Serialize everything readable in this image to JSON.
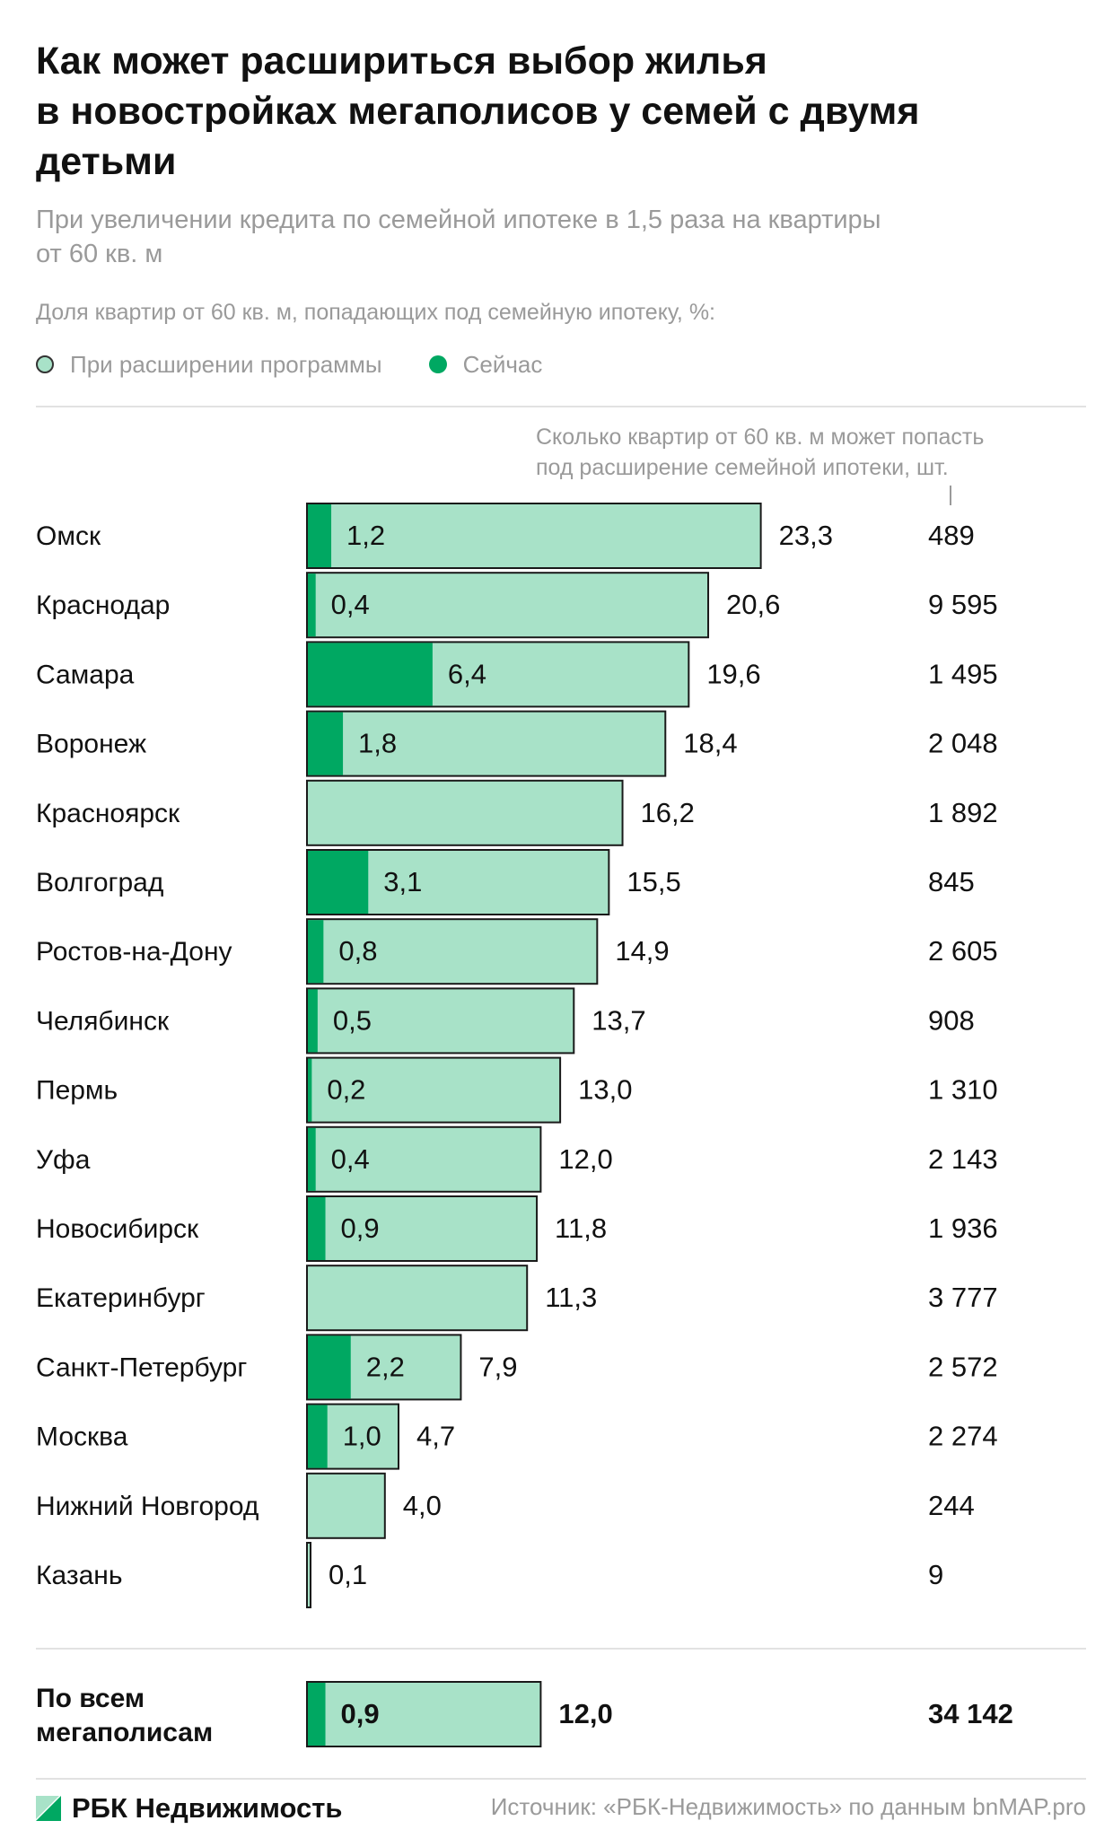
{
  "header": {
    "title_lines": [
      "Как может расшириться выбор жилья",
      "в новостройках  мегаполисов у семей с двумя",
      "детьми"
    ],
    "subtitle_lines": [
      "При увеличении кредита по семейной ипотеке в 1,5 раза на квартиры",
      "от 60 кв. м"
    ],
    "note": "Доля квартир от 60 кв. м, попадающих под семейную ипотеку, %:"
  },
  "legend": {
    "expanded_label": "При расширении программы",
    "current_label": "Сейчас"
  },
  "colors": {
    "expanded": "#a8e2c8",
    "current": "#00a862",
    "bar_outline": "#1a1a1a",
    "muted_text": "#9a9a9a"
  },
  "count_header_lines": [
    "Сколько квартир от 60 кв. м может попасть",
    "под расширение семейной ипотеки, шт."
  ],
  "chart_data": {
    "type": "bar",
    "orientation": "horizontal",
    "stacking": "overlay",
    "value_unit": "%",
    "series": [
      {
        "name": "При расширении программы",
        "key": "expanded"
      },
      {
        "name": "Сейчас",
        "key": "current"
      }
    ],
    "rows": [
      {
        "city": "Омск",
        "expanded": 23.3,
        "current": 1.2,
        "expanded_label": "23,3",
        "current_label": "1,2",
        "count": "489"
      },
      {
        "city": "Краснодар",
        "expanded": 20.6,
        "current": 0.4,
        "expanded_label": "20,6",
        "current_label": "0,4",
        "count": "9 595"
      },
      {
        "city": "Самара",
        "expanded": 19.6,
        "current": 6.4,
        "expanded_label": "19,6",
        "current_label": "6,4",
        "count": "1 495"
      },
      {
        "city": "Воронеж",
        "expanded": 18.4,
        "current": 1.8,
        "expanded_label": "18,4",
        "current_label": "1,8",
        "count": "2 048"
      },
      {
        "city": "Красноярск",
        "expanded": 16.2,
        "current": 0,
        "expanded_label": "16,2",
        "current_label": "",
        "count": "1 892"
      },
      {
        "city": "Волгоград",
        "expanded": 15.5,
        "current": 3.1,
        "expanded_label": "15,5",
        "current_label": "3,1",
        "count": "845"
      },
      {
        "city": "Ростов-на-Дону",
        "expanded": 14.9,
        "current": 0.8,
        "expanded_label": "14,9",
        "current_label": "0,8",
        "count": "2 605"
      },
      {
        "city": "Челябинск",
        "expanded": 13.7,
        "current": 0.5,
        "expanded_label": "13,7",
        "current_label": "0,5",
        "count": "908"
      },
      {
        "city": "Пермь",
        "expanded": 13.0,
        "current": 0.2,
        "expanded_label": "13,0",
        "current_label": "0,2",
        "count": "1 310"
      },
      {
        "city": "Уфа",
        "expanded": 12.0,
        "current": 0.4,
        "expanded_label": "12,0",
        "current_label": "0,4",
        "count": "2 143"
      },
      {
        "city": "Новосибирск",
        "expanded": 11.8,
        "current": 0.9,
        "expanded_label": "11,8",
        "current_label": "0,9",
        "count": "1 936"
      },
      {
        "city": "Екатеринбург",
        "expanded": 11.3,
        "current": 0,
        "expanded_label": "11,3",
        "current_label": "",
        "count": "3 777"
      },
      {
        "city": "Санкт-Петербург",
        "expanded": 7.9,
        "current": 2.2,
        "expanded_label": "7,9",
        "current_label": "2,2",
        "count": "2 572"
      },
      {
        "city": "Москва",
        "expanded": 4.7,
        "current": 1.0,
        "expanded_label": "4,7",
        "current_label": "1,0",
        "count": "2 274"
      },
      {
        "city": "Нижний Новгород",
        "expanded": 4.0,
        "current": 0,
        "expanded_label": "4,0",
        "current_label": "",
        "count": "244"
      },
      {
        "city": "Казань",
        "expanded": 0.1,
        "current": 0,
        "expanded_label": "0,1",
        "current_label": "",
        "count": "9"
      }
    ],
    "total": {
      "city_lines": [
        "По всем",
        "мегаполисам"
      ],
      "expanded": 12.0,
      "current": 0.9,
      "expanded_label": "12,0",
      "current_label": "0,9",
      "count": "34 142"
    }
  },
  "footer": {
    "brand": "РБК Недвижимость",
    "source": "Источник: «РБК-Недвижимость» по данным bnMAP.pro"
  }
}
